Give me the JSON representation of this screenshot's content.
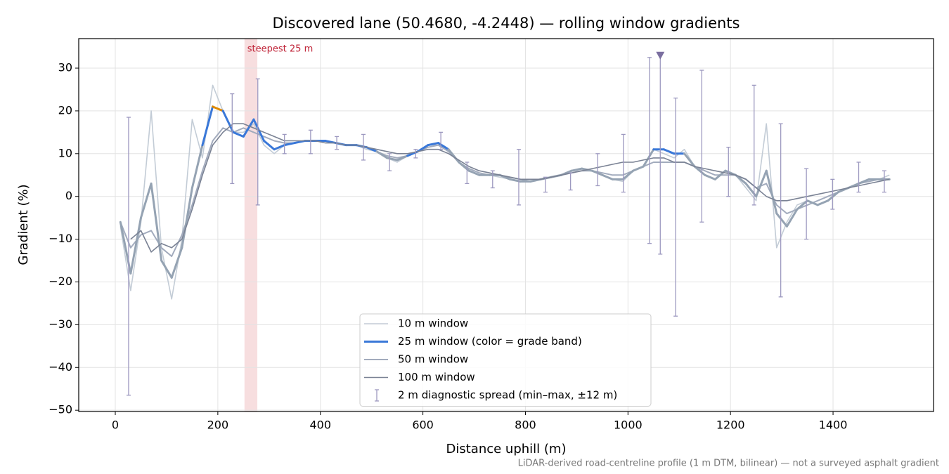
{
  "chart_data": {
    "type": "line",
    "title": "Discovered lane (50.4680, -4.2448) — rolling window gradients",
    "xlabel": "Distance uphill (m)",
    "ylabel": "Gradient (%)",
    "footnote": "LiDAR-derived road-centreline profile (1 m DTM, bilinear) — not a surveyed asphalt gradient",
    "xlim": [
      -71.3,
      1596
    ],
    "ylim": [
      -50.3,
      36.9
    ],
    "xticks": [
      0,
      200,
      400,
      600,
      800,
      1000,
      1200,
      1400
    ],
    "yticks": [
      {
        "value": -50,
        "label": "−50"
      },
      {
        "value": -40,
        "label": "−40"
      },
      {
        "value": -30,
        "label": "−30"
      },
      {
        "value": -20,
        "label": "−20"
      },
      {
        "value": -10,
        "label": "−10"
      },
      0,
      10,
      20,
      30
    ],
    "grid": true,
    "legend": "lower center",
    "x": [
      10,
      30,
      50,
      70,
      90,
      110,
      130,
      150,
      170,
      190,
      210,
      230,
      250,
      270,
      290,
      310,
      330,
      350,
      370,
      390,
      410,
      430,
      450,
      470,
      490,
      510,
      530,
      550,
      570,
      590,
      610,
      630,
      650,
      670,
      690,
      710,
      730,
      750,
      770,
      790,
      810,
      830,
      850,
      870,
      890,
      910,
      930,
      950,
      970,
      990,
      1010,
      1030,
      1050,
      1070,
      1090,
      1110,
      1130,
      1150,
      1170,
      1190,
      1210,
      1230,
      1250,
      1270,
      1290,
      1310,
      1330,
      1350,
      1370,
      1390,
      1410,
      1430,
      1450,
      1470,
      1490,
      1510
    ],
    "series": [
      {
        "name": "10 m window",
        "color": "#c3ccd6",
        "values": [
          -7,
          -22,
          -6,
          20,
          -12,
          -24,
          -10,
          18,
          9,
          26,
          20,
          15,
          15,
          17,
          12,
          10,
          12,
          12.5,
          13,
          13,
          13,
          12.5,
          12,
          12,
          11,
          10.5,
          9,
          8,
          9.5,
          10.5,
          12,
          12,
          11,
          8,
          6,
          5,
          5,
          4.5,
          4,
          3.5,
          3.5,
          4,
          4.5,
          5,
          6,
          6.5,
          6,
          5,
          4,
          3.5,
          6,
          7,
          11,
          10,
          9,
          11,
          7,
          5,
          4,
          6,
          5,
          2,
          -1,
          17,
          -12,
          -6,
          -2,
          -1,
          -2,
          -1,
          1,
          2,
          3,
          4,
          4,
          5
        ]
      },
      {
        "name": "25 m window (color = grade band)",
        "color": "#95a3b3",
        "grade_bands": [
          {
            "from": 10,
            "color": "#3a78d8"
          },
          {
            "from": 20,
            "color": "#e08a00"
          }
        ],
        "values": [
          -6,
          -18,
          -5,
          3,
          -15,
          -19,
          -12,
          2,
          12,
          21,
          20,
          15,
          14,
          18,
          13,
          11,
          12,
          12.5,
          13,
          13,
          13,
          12.5,
          12,
          12,
          11.5,
          10.5,
          9,
          8.5,
          9.5,
          10.5,
          12,
          12.5,
          11,
          8,
          6,
          5,
          5,
          5,
          4,
          3.5,
          3.5,
          4,
          4.5,
          5,
          6,
          6.5,
          6,
          5,
          4,
          4,
          6,
          7,
          11,
          11,
          10,
          10,
          7,
          5,
          4,
          6,
          5,
          3,
          0,
          6,
          -4,
          -7,
          -3,
          -1,
          -2,
          -1,
          1,
          2,
          3,
          4,
          4,
          4
        ]
      },
      {
        "name": "50 m window",
        "color": "#a2abbd",
        "values": [
          -6,
          -12,
          -9,
          -8,
          -12,
          -14,
          -9,
          -2,
          6,
          13,
          16,
          15,
          16,
          15,
          14,
          13,
          12.5,
          12.5,
          13,
          13,
          13,
          12.5,
          12,
          12,
          11.5,
          10.5,
          9.5,
          9,
          9.5,
          10.5,
          11.5,
          12,
          10.5,
          8,
          6.5,
          5.5,
          5,
          5,
          4.5,
          4,
          3.5,
          4,
          4.5,
          5,
          5.5,
          6,
          6,
          5.5,
          5,
          5,
          6,
          7,
          8,
          8,
          8,
          8,
          7,
          6,
          5,
          5,
          5,
          4,
          2,
          3,
          -2,
          -4,
          -3,
          -2,
          -1,
          0,
          1,
          2,
          3,
          3.5,
          4,
          4
        ]
      },
      {
        "name": "100 m window",
        "color": "#7a8294",
        "values": [
          null,
          -10,
          -8,
          -13,
          -11,
          -12,
          -10,
          -3,
          5,
          12,
          15,
          17,
          17,
          16,
          15,
          14,
          13,
          13,
          13,
          13,
          12.5,
          12.5,
          12,
          12,
          11.5,
          11,
          10.5,
          10,
          10,
          10.5,
          11,
          11,
          10,
          8.5,
          7,
          6,
          5.5,
          5,
          4.5,
          4,
          4,
          4,
          4.5,
          5,
          5.5,
          6,
          6.5,
          7,
          7.5,
          8,
          8,
          8.5,
          9,
          9,
          8,
          8,
          7,
          6.5,
          6,
          5.5,
          5,
          4,
          2,
          0,
          -1,
          -1,
          -0.5,
          0,
          0.5,
          1,
          1.5,
          2,
          2.5,
          3,
          3.5,
          4
        ]
      }
    ],
    "errorbars": {
      "name": "2 m diagnostic spread (min–max, ±12 m)",
      "color": "#9d99c0",
      "x": [
        26,
        228,
        278,
        330,
        381,
        432,
        484,
        535,
        586,
        635,
        686,
        736,
        787,
        839,
        888,
        941,
        991,
        1042,
        1063,
        1093,
        1144,
        1196,
        1246,
        1298,
        1348,
        1399,
        1450,
        1500
      ],
      "low": [
        -46.5,
        3,
        -2,
        10,
        10,
        11,
        8.5,
        6,
        9,
        11,
        3,
        2,
        -2,
        1,
        1.5,
        2.5,
        1,
        -11,
        -13.5,
        -28,
        -6,
        0,
        -2,
        -23.5,
        -10,
        -3,
        1,
        1
      ],
      "high": [
        18.5,
        24,
        27.5,
        14.5,
        15.5,
        14,
        14.5,
        10,
        11,
        15,
        8,
        6,
        11,
        4.5,
        5.5,
        10,
        14.5,
        32.5,
        33,
        23,
        29.5,
        11.5,
        26,
        17,
        6.5,
        4,
        8,
        6
      ]
    },
    "marker": {
      "x": 1063,
      "y": 33,
      "color": "#7b6fa0"
    },
    "highlight": {
      "label": "steepest 25 m",
      "from": 252,
      "to": 277,
      "color": "#e8a0a4",
      "label_color": "#c0263a"
    }
  }
}
